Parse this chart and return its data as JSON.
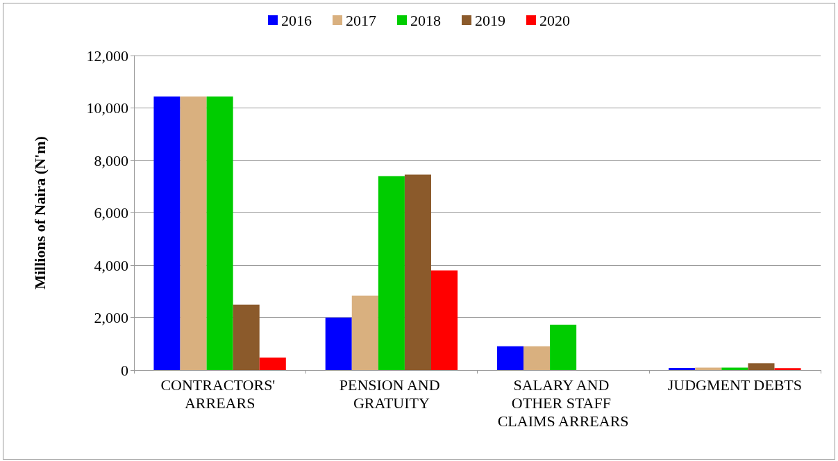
{
  "chart_data": {
    "type": "bar",
    "ylabel": "Millions of Naira (N'm)",
    "categories": [
      "CONTRACTORS' ARREARS",
      "PENSION AND GRATUITY",
      "SALARY AND OTHER STAFF CLAIMS ARREARS",
      "JUDGMENT DEBTS"
    ],
    "series": [
      {
        "name": "2016",
        "color": "#0000ff",
        "values": [
          10440,
          2000,
          910,
          80
        ]
      },
      {
        "name": "2017",
        "color": "#d9b07f",
        "values": [
          10440,
          2840,
          910,
          90
        ]
      },
      {
        "name": "2018",
        "color": "#00cc00",
        "values": [
          10440,
          7400,
          1730,
          90
        ]
      },
      {
        "name": "2019",
        "color": "#8b5a2b",
        "values": [
          2500,
          7460,
          0,
          260
        ]
      },
      {
        "name": "2020",
        "color": "#ff0000",
        "values": [
          480,
          3800,
          0,
          70
        ]
      }
    ],
    "ylim": [
      0,
      12000
    ],
    "yticks": [
      0,
      {
        "value": 2000,
        "label": "2,000"
      },
      {
        "value": 4000,
        "label": "4,000"
      },
      {
        "value": 6000,
        "label": "6,000"
      },
      {
        "value": 8000,
        "label": "8,000"
      },
      {
        "value": 10000,
        "label": "10,000"
      },
      {
        "value": 12000,
        "label": "12,000"
      }
    ],
    "grid": "y",
    "legend": "top"
  }
}
